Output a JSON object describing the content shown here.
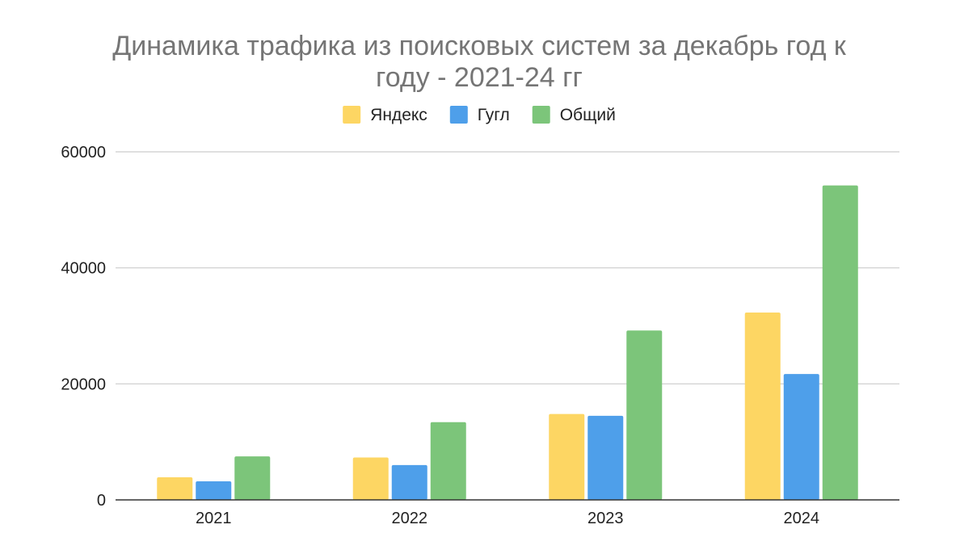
{
  "chart_data": {
    "type": "bar",
    "title_lines": [
      "Динамика трафика из поисковых систем за декабрь год к",
      "году - 2021-24 гг"
    ],
    "xlabel": "",
    "ylabel": "",
    "categories": [
      "2021",
      "2022",
      "2023",
      "2024"
    ],
    "series": [
      {
        "name": "Яндекс",
        "color": "#fdd663",
        "values": [
          3900,
          7300,
          14800,
          32300
        ]
      },
      {
        "name": "Гугл",
        "color": "#4e9fea",
        "values": [
          3200,
          6000,
          14500,
          21700
        ]
      },
      {
        "name": "Общий",
        "color": "#7cc57a",
        "values": [
          7500,
          13400,
          29200,
          54200
        ]
      }
    ],
    "ylim": [
      0,
      60000
    ],
    "yticks": [
      "0",
      "20000",
      "40000",
      "60000"
    ],
    "ytick_values": [
      0,
      20000,
      40000,
      60000
    ],
    "grid": true,
    "legend_position": "top"
  }
}
